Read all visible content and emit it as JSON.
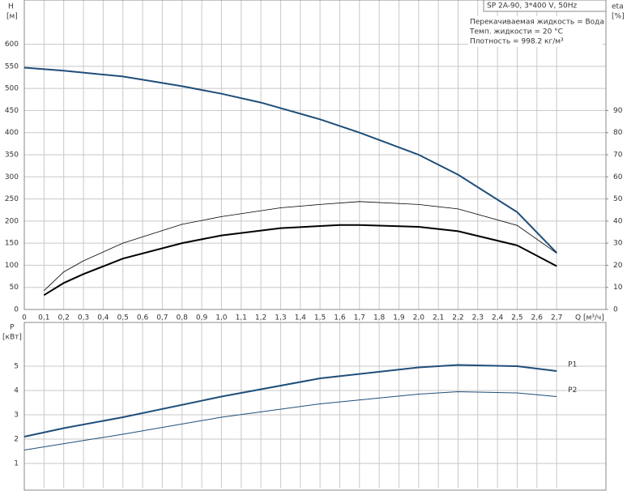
{
  "chart_data": [
    {
      "type": "line",
      "title": "SP 2A-90, 3*400 V, 50Hz",
      "annotations": [
        "Перекачиваемая жидкость = Вода",
        "Темп. жидкости = 20 °C",
        "Плотность = 998.2 кг/м³"
      ],
      "y_label": "H",
      "y_unit": "[м]",
      "y2_label": "eta",
      "y2_unit": "[%]",
      "x_label": "Q [м³/ч]",
      "xlim": [
        0,
        2.95
      ],
      "ylim": [
        0,
        700
      ],
      "y2lim": [
        0,
        140
      ],
      "grid": true,
      "xticks": [
        0,
        {
          "value": 0.1,
          "label": "0,1"
        },
        {
          "value": 0.2,
          "label": "0,2"
        },
        {
          "value": 0.3,
          "label": "0,3"
        },
        {
          "value": 0.4,
          "label": "0,4"
        },
        {
          "value": 0.5,
          "label": "0,5"
        },
        {
          "value": 0.6,
          "label": "0,6"
        },
        {
          "value": 0.7,
          "label": "0,7"
        },
        {
          "value": 0.8,
          "label": "0,8"
        },
        {
          "value": 0.9,
          "label": "0,9"
        },
        {
          "value": 1.0,
          "label": "1,0"
        },
        {
          "value": 1.1,
          "label": "1,1"
        },
        {
          "value": 1.2,
          "label": "1,2"
        },
        {
          "value": 1.3,
          "label": "1,3"
        },
        {
          "value": 1.4,
          "label": "1,4"
        },
        {
          "value": 1.5,
          "label": "1,5"
        },
        {
          "value": 1.6,
          "label": "1,6"
        },
        {
          "value": 1.7,
          "label": "1,7"
        },
        {
          "value": 1.8,
          "label": "1,8"
        },
        {
          "value": 1.9,
          "label": "1,9"
        },
        {
          "value": 2.0,
          "label": "2,0"
        },
        {
          "value": 2.1,
          "label": "2,1"
        },
        {
          "value": 2.2,
          "label": "2,2"
        },
        {
          "value": 2.3,
          "label": "2,3"
        },
        {
          "value": 2.4,
          "label": "2,4"
        },
        {
          "value": 2.5,
          "label": "2,5"
        },
        {
          "value": 2.6,
          "label": "2,6"
        },
        {
          "value": 2.7,
          "label": "2,7"
        }
      ],
      "yticks": [
        0,
        50,
        100,
        150,
        200,
        250,
        300,
        350,
        400,
        450,
        500,
        550,
        600
      ],
      "y2ticks": [
        0,
        10,
        20,
        30,
        40,
        50,
        60,
        70,
        80,
        90
      ],
      "series": [
        {
          "color": "#1f4e79",
          "line_width": 2,
          "x": [
            0,
            0.2,
            0.5,
            0.8,
            1.0,
            1.2,
            1.5,
            1.7,
            2.0,
            2.2,
            2.5,
            2.7
          ],
          "values": [
            547,
            540,
            527,
            505,
            488,
            468,
            430,
            400,
            350,
            305,
            220,
            128
          ]
        },
        {
          "color": "#000000",
          "line_width": 0.8,
          "axis": "y2",
          "x": [
            0.1,
            0.2,
            0.3,
            0.5,
            0.8,
            1.0,
            1.3,
            1.5,
            1.7,
            2.0,
            2.2,
            2.5,
            2.7
          ],
          "values": [
            8.5,
            17,
            22,
            30,
            38.5,
            42,
            46,
            47.5,
            48.8,
            47.5,
            45.5,
            38,
            25.5
          ]
        },
        {
          "color": "#000000",
          "line_width": 2,
          "axis": "y2",
          "x": [
            0.1,
            0.2,
            0.3,
            0.5,
            0.8,
            1.0,
            1.3,
            1.6,
            1.7,
            2.0,
            2.2,
            2.5,
            2.7
          ],
          "values": [
            6.5,
            12,
            16,
            23,
            30,
            33.5,
            36.8,
            38.2,
            38.2,
            37.4,
            35.4,
            29,
            19.6
          ]
        }
      ]
    },
    {
      "type": "line",
      "y_label": "P",
      "y_unit": "[кВт]",
      "xlim": [
        0,
        2.95
      ],
      "ylim": [
        0,
        6.8
      ],
      "grid": true,
      "yticks": [
        1,
        2,
        3,
        4,
        5
      ],
      "series": [
        {
          "name": "P1",
          "color": "#1f4e79",
          "line_width": 2,
          "x": [
            0,
            0.2,
            0.5,
            1.0,
            1.5,
            2.0,
            2.2,
            2.5,
            2.7
          ],
          "values": [
            2.1,
            2.45,
            2.9,
            3.75,
            4.5,
            4.95,
            5.05,
            5.0,
            4.8
          ]
        },
        {
          "name": "P2",
          "color": "#1f4e79",
          "line_width": 1,
          "x": [
            0,
            0.5,
            1.0,
            1.5,
            2.0,
            2.2,
            2.5,
            2.7
          ],
          "values": [
            1.55,
            2.2,
            2.9,
            3.45,
            3.85,
            3.95,
            3.9,
            3.75
          ]
        }
      ]
    }
  ]
}
